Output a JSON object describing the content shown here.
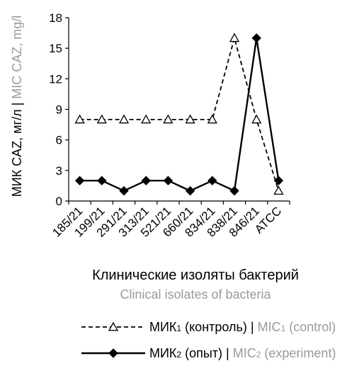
{
  "chart_data": {
    "type": "line",
    "categories": [
      "185/21",
      "199/21",
      "291/21",
      "313/21",
      "521/21",
      "660/21",
      "834/21",
      "838/21",
      "846/21",
      "ATCC"
    ],
    "series": [
      {
        "name": "МИК₁ (контроль) | MIC₁ (control)",
        "name_ru": "МИК",
        "name_ru_sub": "1",
        "name_ru_tail": " (контроль) | ",
        "name_en": "MIC",
        "name_en_sub": "1",
        "name_en_tail": " (control)",
        "values": [
          8,
          8,
          8,
          8,
          8,
          8,
          8,
          16,
          8,
          1
        ],
        "line_style": "dashed",
        "marker": "open-triangle",
        "color": "#000000"
      },
      {
        "name": "МИК₂ (опыт) | MIC₂ (experiment)",
        "name_ru": "МИК",
        "name_ru_sub": "2",
        "name_ru_tail": " (опыт) | ",
        "name_en": "MIC",
        "name_en_sub": "2",
        "name_en_tail": " (experiment)",
        "values": [
          2,
          2,
          1,
          2,
          2,
          1,
          2,
          1,
          16,
          2
        ],
        "line_style": "solid",
        "marker": "filled-diamond",
        "color": "#000000"
      }
    ],
    "ylabel_ru": "МИК CAZ, мг/л | ",
    "ylabel_en": "MIC CAZ, mg/l",
    "xlabel_ru": "Клинические изоляты бактерий",
    "xlabel_en": "Clinical isolates of bacteria",
    "ylim": [
      0,
      18
    ],
    "yticks": [
      "0",
      "3",
      "6",
      "9",
      "12",
      "15",
      "18"
    ],
    "grid": false,
    "legend_position": "bottom",
    "colors": {
      "primary": "#000000",
      "translation": "#9a9a9a"
    }
  }
}
